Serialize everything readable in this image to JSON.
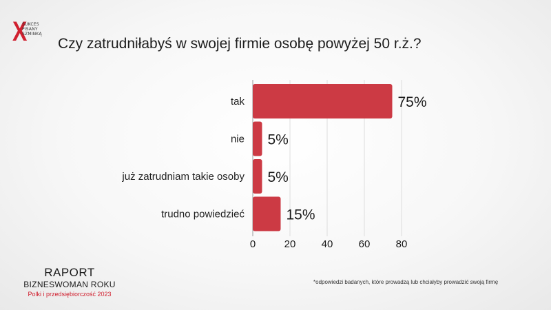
{
  "logo": {
    "mark": "X",
    "lines": [
      "SUKCES",
      "PISANY",
      "SZMINKĄ"
    ]
  },
  "title": "Czy zatrudniłabyś w swojej firmie osobę powyżej 50 r.ż.?",
  "chart_data": {
    "type": "bar",
    "orientation": "horizontal",
    "title": "Czy zatrudniłabyś w swojej firmie osobę powyżej 50 r.ż.?",
    "categories": [
      "tak",
      "nie",
      "już zatrudniam takie osoby",
      "trudno powiedzieć"
    ],
    "values": [
      75,
      5,
      5,
      15
    ],
    "value_labels": [
      "75%",
      "5%",
      "5%",
      "15%"
    ],
    "xlim": [
      0,
      80
    ],
    "xticks": [
      "0",
      "20",
      "40",
      "60",
      "80"
    ],
    "bar_color": "#cc3a44",
    "grid": true
  },
  "brand": {
    "line1": "RAPORT",
    "line2": "BIZNESWOMAN ROKU",
    "line3": "Polki i przedsiębiorczość 2023"
  },
  "footnote": "*odpowiedzi badanych, które prowadzą lub chciałyby prowadzić swoją firmę",
  "colors": {
    "accent": "#d0202f",
    "bar": "#cc3a44"
  }
}
